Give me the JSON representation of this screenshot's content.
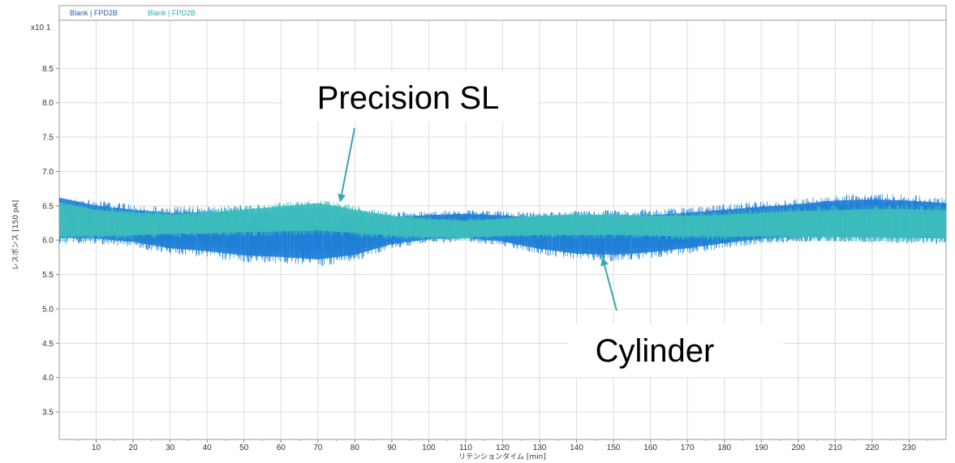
{
  "chart_data": {
    "type": "line",
    "xlabel": "リテンションタイム [min]",
    "ylabel": "レスポンス [150 pA]",
    "y_multiplier": "x10 1",
    "xlim": [
      0,
      240
    ],
    "ylim": [
      3.1,
      9.2
    ],
    "x_ticks": [
      10,
      20,
      30,
      40,
      50,
      60,
      70,
      80,
      90,
      100,
      110,
      120,
      130,
      140,
      150,
      160,
      170,
      180,
      190,
      200,
      210,
      220,
      230
    ],
    "y_ticks": [
      3.5,
      4.0,
      4.5,
      5.0,
      5.5,
      6.0,
      6.5,
      7.0,
      7.5,
      8.0,
      8.5
    ],
    "grid": true,
    "legend_position": "top-left",
    "legend": [
      "Blank | FPD2B",
      "Blank | FPD2B"
    ],
    "series": [
      {
        "color": "#1f7fd6",
        "envelope": {
          "x": [
            0,
            10,
            20,
            30,
            40,
            50,
            60,
            70,
            80,
            90,
            100,
            110,
            120,
            130,
            140,
            150,
            160,
            170,
            180,
            190,
            200,
            210,
            220,
            230,
            240
          ],
          "upper": [
            6.62,
            6.58,
            6.52,
            6.48,
            6.5,
            6.5,
            6.46,
            6.45,
            6.42,
            6.4,
            6.42,
            6.44,
            6.42,
            6.4,
            6.42,
            6.44,
            6.45,
            6.48,
            6.52,
            6.56,
            6.6,
            6.66,
            6.68,
            6.66,
            6.62
          ],
          "lower": [
            5.95,
            5.95,
            5.9,
            5.8,
            5.75,
            5.68,
            5.66,
            5.62,
            5.7,
            5.88,
            5.96,
            5.98,
            5.92,
            5.8,
            5.72,
            5.7,
            5.74,
            5.8,
            5.88,
            5.95,
            5.97,
            5.98,
            5.97,
            5.96,
            5.95
          ]
        }
      },
      {
        "color": "#3cbcbc",
        "envelope": {
          "x": [
            0,
            10,
            20,
            30,
            40,
            50,
            60,
            70,
            80,
            90,
            100,
            110,
            120,
            130,
            140,
            150,
            160,
            170,
            180,
            190,
            200,
            210,
            220,
            230,
            240
          ],
          "upper": [
            6.55,
            6.5,
            6.45,
            6.42,
            6.45,
            6.5,
            6.55,
            6.6,
            6.5,
            6.4,
            6.35,
            6.32,
            6.35,
            6.4,
            6.42,
            6.42,
            6.4,
            6.4,
            6.42,
            6.45,
            6.48,
            6.5,
            6.52,
            6.52,
            6.5
          ],
          "lower": [
            5.98,
            6.0,
            6.02,
            6.05,
            6.05,
            6.06,
            6.07,
            6.08,
            6.05,
            6.02,
            6.0,
            6.0,
            6.02,
            6.03,
            6.03,
            6.03,
            6.02,
            6.01,
            6.0,
            6.0,
            5.99,
            5.98,
            5.97,
            5.96,
            5.96
          ]
        }
      }
    ],
    "annotations": [
      {
        "text": "Precision SL",
        "points_to": {
          "x": 76,
          "y": 6.55
        }
      },
      {
        "text": "Cylinder",
        "points_to": {
          "x": 147,
          "y": 5.75
        }
      }
    ]
  }
}
